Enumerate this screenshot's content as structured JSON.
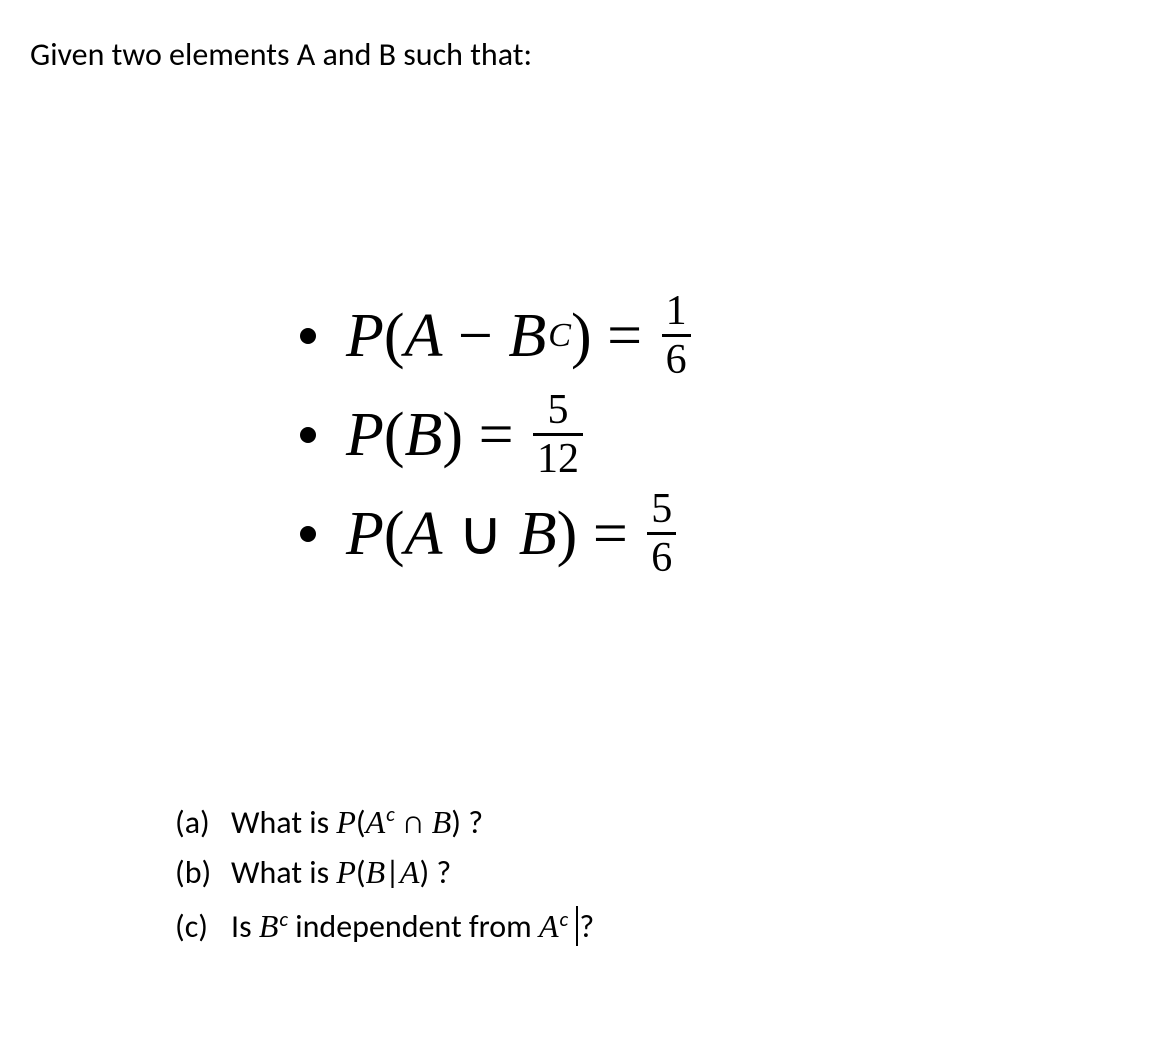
{
  "colors": {
    "background": "#ffffff",
    "text": "#000000",
    "bullet": "#000000",
    "fraction_rule": "#000000",
    "caret": "#000000"
  },
  "typography": {
    "body_font": "Calibri",
    "math_font": "Cambria Math / Times New Roman",
    "intro_fontsize_pt": 24,
    "given_expr_fontsize_pt": 46,
    "given_frac_fontsize_pt": 31,
    "questions_fontsize_pt": 24
  },
  "intro": "Given two elements A and B such that:",
  "math": {
    "P": "P",
    "A": "A",
    "B": "B",
    "C_sup": "C",
    "c_sup": "c",
    "minus": " − ",
    "equals": " = ",
    "union": " ∪ ",
    "intersect": " ∩ ",
    "bar": "|",
    "lparen": "(",
    "rparen": ")",
    "space": " "
  },
  "given": [
    {
      "frac": {
        "num": "1",
        "den": "6"
      }
    },
    {
      "frac": {
        "num": "5",
        "den": "12"
      }
    },
    {
      "frac": {
        "num": "5",
        "den": "6"
      }
    }
  ],
  "questions": {
    "a": {
      "label": "(a)",
      "pre": "What is ",
      "post": " ?"
    },
    "b": {
      "label": "(b)",
      "pre": "What is ",
      "post": " ?"
    },
    "c": {
      "label": "(c)",
      "pre": "Is ",
      "mid": " independent from ",
      "post": "?"
    }
  }
}
